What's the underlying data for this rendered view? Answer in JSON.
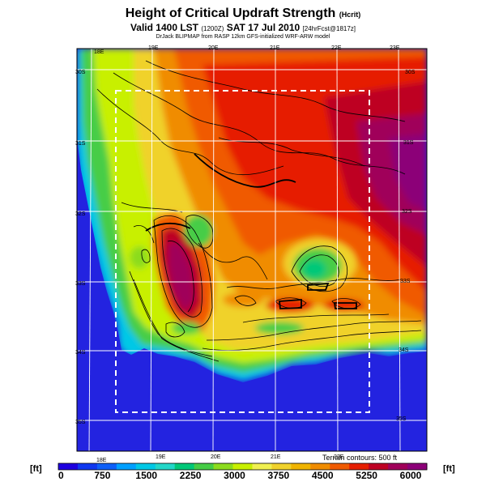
{
  "header": {
    "title": "Height of Critical Updraft Strength",
    "title_suffix": "(Hcrit)",
    "valid_line": "Valid 1400 LST",
    "valid_code": "(1200Z)",
    "valid_date": "SAT 17 Jul 2010",
    "forecast": "[24hrFcst@1817z]",
    "credit": "DrJack BLIPMAP from RASP 12km GFS-initialized WRF-ARW model"
  },
  "map": {
    "lon_labels_top": [
      "18E",
      "19E",
      "20E",
      "21E",
      "22E",
      "23E"
    ],
    "lon_labels_bottom": [
      "18E",
      "19E",
      "20E",
      "21E",
      "22E"
    ],
    "lat_labels_left": [
      "30S",
      "31S",
      "32S",
      "33S",
      "34S",
      "35S"
    ],
    "lat_labels_right": [
      "30S",
      "31S",
      "32S",
      "33S",
      "34S",
      "35S"
    ],
    "contour_note": "Terrain contours: 500 ft",
    "colors": {
      "sea": "#2323e0",
      "frame": "#000000",
      "grid": "#ffffff"
    }
  },
  "colorbar": {
    "unit_left": "[ft]",
    "unit_right": "[ft]",
    "tick_labels": [
      "0",
      "750",
      "1500",
      "2250",
      "3000",
      "3750",
      "4500",
      "5250",
      "6000"
    ],
    "colors": [
      "#1e00e0",
      "#0f37f0",
      "#0d5ff8",
      "#00a0ff",
      "#00c8e6",
      "#23d7c8",
      "#00c878",
      "#46cd46",
      "#8cdc1e",
      "#c8f000",
      "#f0f050",
      "#f0d22c",
      "#f0b400",
      "#f08c00",
      "#f05a00",
      "#e61e00",
      "#be0023",
      "#a0005a",
      "#8c0078"
    ]
  }
}
